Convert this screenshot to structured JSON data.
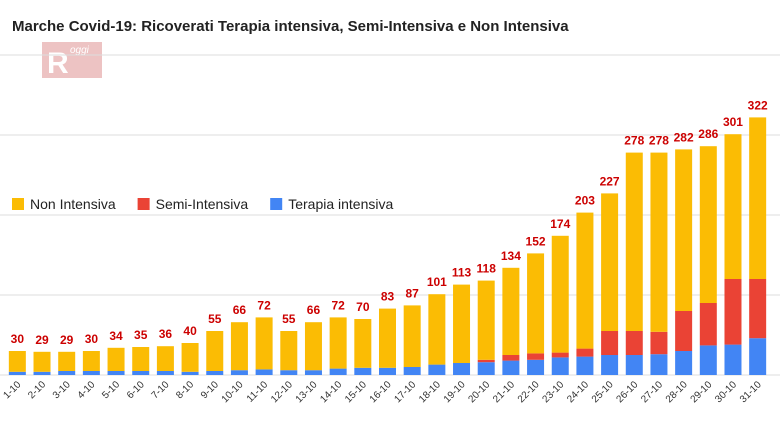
{
  "chart_data": {
    "type": "stacked-bar",
    "title": "Marche Covid-19: Ricoverati Terapia intensiva, Semi-Intensiva e Non Intensiva",
    "logo_letter": "R",
    "logo_text": "oggi",
    "categories": [
      "1-10",
      "2-10",
      "3-10",
      "4-10",
      "5-10",
      "6-10",
      "7-10",
      "8-10",
      "9-10",
      "10-10",
      "11-10",
      "12-10",
      "13-10",
      "14-10",
      "15-10",
      "16-10",
      "17-10",
      "18-10",
      "19-10",
      "20-10",
      "21-10",
      "22-10",
      "23-10",
      "24-10",
      "25-10",
      "26-10",
      "27-10",
      "28-10",
      "29-10",
      "30-10",
      "31-10"
    ],
    "series": [
      {
        "name": "Terapia intensiva",
        "color": "#4285f4",
        "values": [
          4,
          4,
          5,
          5,
          5,
          5,
          5,
          4,
          5,
          6,
          7,
          6,
          6,
          8,
          9,
          9,
          10,
          13,
          15,
          16,
          18,
          19,
          22,
          23,
          25,
          25,
          26,
          30,
          37,
          38,
          46
        ]
      },
      {
        "name": "Semi-Intensiva",
        "color": "#ea4335",
        "values": [
          0,
          0,
          0,
          0,
          0,
          0,
          0,
          0,
          0,
          0,
          0,
          0,
          0,
          0,
          0,
          0,
          0,
          0,
          0,
          3,
          7,
          8,
          6,
          10,
          30,
          30,
          28,
          50,
          53,
          82,
          74
        ]
      },
      {
        "name": "Non Intensiva",
        "color": "#fbbc04",
        "values": [
          26,
          25,
          24,
          25,
          29,
          30,
          31,
          36,
          50,
          60,
          65,
          49,
          60,
          64,
          61,
          74,
          77,
          88,
          98,
          99,
          109,
          125,
          146,
          170,
          172,
          223,
          224,
          202,
          196,
          181,
          202
        ]
      }
    ],
    "total_labels": [
      30,
      29,
      29,
      30,
      34,
      35,
      36,
      40,
      55,
      66,
      72,
      55,
      66,
      72,
      70,
      83,
      87,
      101,
      113,
      118,
      134,
      152,
      174,
      203,
      227,
      278,
      278,
      282,
      286,
      301,
      322
    ],
    "ylim": [
      0,
      400
    ],
    "gridlines": [
      0,
      100,
      200,
      300,
      400
    ],
    "grid": true,
    "legend": "left"
  }
}
